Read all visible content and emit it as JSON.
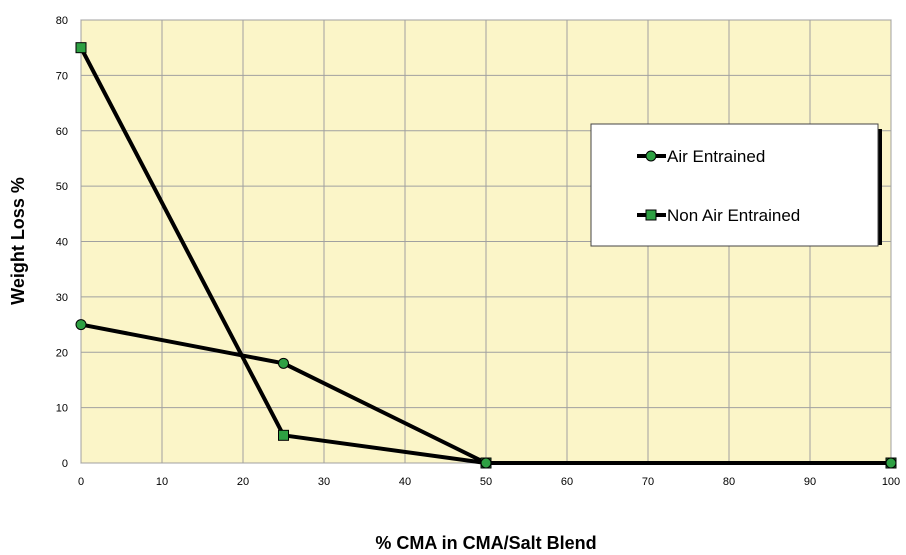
{
  "chart_data": {
    "type": "line",
    "xlabel": "% CMA in CMA/Salt Blend",
    "ylabel": "Weight Loss %",
    "xlim": [
      0,
      100
    ],
    "ylim": [
      0,
      80
    ],
    "x_ticks": [
      "0",
      "10",
      "20",
      "30",
      "40",
      "50",
      "60",
      "70",
      "80",
      "90",
      "100"
    ],
    "y_ticks": [
      "0",
      "10",
      "20",
      "30",
      "40",
      "50",
      "60",
      "70",
      "80"
    ],
    "grid": true,
    "legend_position": "right",
    "plot_background": "#FBF5C8",
    "grid_color": "#A0A0A0",
    "series": [
      {
        "name": "Air Entrained",
        "marker": "circle",
        "line_color": "#000000",
        "marker_color": "#2EA043",
        "x": [
          0,
          25,
          50,
          100
        ],
        "y": [
          25,
          18,
          0,
          0
        ]
      },
      {
        "name": "Non Air Entrained",
        "marker": "square",
        "line_color": "#000000",
        "marker_color": "#2EA043",
        "x": [
          0,
          25,
          50,
          100
        ],
        "y": [
          75,
          5,
          0,
          0
        ]
      }
    ]
  }
}
